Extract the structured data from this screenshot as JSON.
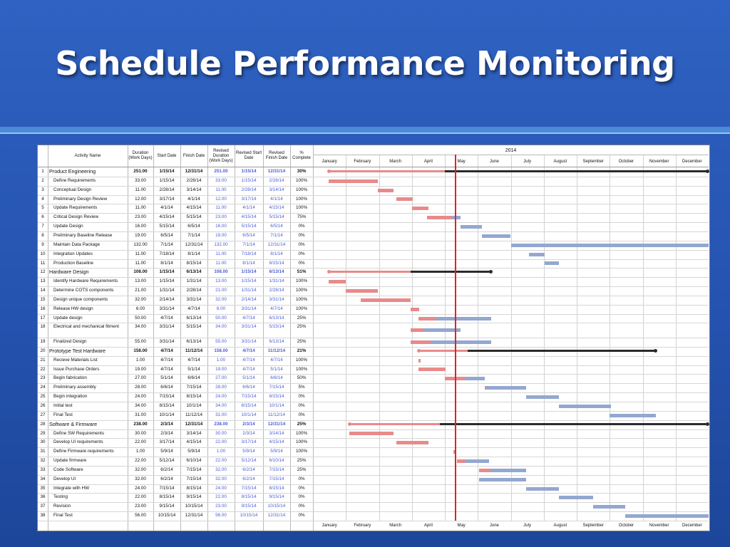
{
  "title": "Schedule Performance Monitoring",
  "headers": {
    "activity": "Activity Name",
    "duration": "Duration (Work Days)",
    "start": "Start Date",
    "finish": "Finish Date",
    "rev_duration": "Revised Duration (Work Days)",
    "rev_start": "Revised Start Date",
    "rev_finish": "Revised Finish Date",
    "pct": "% Complete",
    "year": "2014"
  },
  "months": [
    "January",
    "February",
    "March",
    "April",
    "May",
    "June",
    "July",
    "August",
    "September",
    "October",
    "November",
    "December"
  ],
  "colors": {
    "planned": "#e88a8a",
    "revised": "#93a8d0",
    "summary": "#2b2b2b",
    "today": "#e0202a"
  },
  "status_date_month": 4.3,
  "rows": [
    {
      "n": "1",
      "name": "Product Engineering",
      "dur": "251.00",
      "start": "1/15/14",
      "finish": "12/31/14",
      "rdur": "251.00",
      "rstart": "1/15/14",
      "rfinish": "12/31/14",
      "pct": "30%",
      "summary": true,
      "ps": 0.47,
      "pe": 11.97,
      "prog": 4.0
    },
    {
      "n": "2",
      "name": "Define Requirements",
      "dur": "33.00",
      "start": "1/15/14",
      "finish": "2/28/14",
      "rdur": "33.00",
      "rstart": "1/15/14",
      "rfinish": "2/28/14",
      "pct": "100%",
      "ps": 0.47,
      "pe": 1.97,
      "rs": 0.47,
      "re": 1.97
    },
    {
      "n": "3",
      "name": "Conceptual Design",
      "dur": "11.00",
      "start": "2/28/14",
      "finish": "3/14/14",
      "rdur": "11.00",
      "rstart": "2/28/14",
      "rfinish": "3/14/14",
      "pct": "100%",
      "ps": 1.97,
      "pe": 2.45,
      "rs": 1.97,
      "re": 2.45
    },
    {
      "n": "4",
      "name": "Preliminary Design Review",
      "dur": "12.00",
      "start": "3/17/14",
      "finish": "4/1/14",
      "rdur": "12.00",
      "rstart": "3/17/14",
      "rfinish": "4/1/14",
      "pct": "100%",
      "ps": 2.52,
      "pe": 3.03,
      "rs": 2.52,
      "re": 3.03
    },
    {
      "n": "5",
      "name": "Update Requirements",
      "dur": "11.00",
      "start": "4/1/14",
      "finish": "4/15/14",
      "rdur": "11.00",
      "rstart": "4/1/14",
      "rfinish": "4/15/14",
      "pct": "100%",
      "ps": 3.0,
      "pe": 3.5,
      "rs": 3.0,
      "re": 3.5
    },
    {
      "n": "6",
      "name": "Critical Design Review",
      "dur": "23.00",
      "start": "4/15/14",
      "finish": "5/15/14",
      "rdur": "23.00",
      "rstart": "4/15/14",
      "rfinish": "5/15/14",
      "pct": "75%",
      "ps": 3.47,
      "pe": 4.47,
      "rs": 3.47,
      "re": 4.47,
      "done": 0.75
    },
    {
      "n": "7",
      "name": "Update Design",
      "dur": "16.00",
      "start": "5/15/14",
      "finish": "6/5/14",
      "rdur": "16.00",
      "rstart": "5/15/14",
      "rfinish": "6/5/14",
      "pct": "0%",
      "ps": 4.47,
      "pe": 5.13,
      "rs": 4.47,
      "re": 5.13,
      "done": 0
    },
    {
      "n": "8",
      "name": "Preliminary Baseline Release",
      "dur": "19.00",
      "start": "6/5/14",
      "finish": "7/1/14",
      "rdur": "19.00",
      "rstart": "6/5/14",
      "rfinish": "7/1/14",
      "pct": "0%",
      "ps": 5.13,
      "pe": 6.0,
      "rs": 5.13,
      "re": 6.0,
      "done": 0
    },
    {
      "n": "9",
      "name": "Maintain Data Package",
      "dur": "132.00",
      "start": "7/1/14",
      "finish": "12/31/14",
      "rdur": "132.00",
      "rstart": "7/1/14",
      "rfinish": "12/31/14",
      "pct": "0%",
      "ps": 6.0,
      "pe": 12.0,
      "rs": 6.0,
      "re": 12.0,
      "done": 0
    },
    {
      "n": "10",
      "name": "Integration Updates",
      "dur": "11.00",
      "start": "7/18/14",
      "finish": "8/1/14",
      "rdur": "11.00",
      "rstart": "7/18/14",
      "rfinish": "8/1/14",
      "pct": "0%",
      "ps": 6.55,
      "pe": 7.03,
      "rs": 6.55,
      "re": 7.03,
      "done": 0
    },
    {
      "n": "11",
      "name": "Production Baseline",
      "dur": "11.00",
      "start": "8/1/14",
      "finish": "8/15/14",
      "rdur": "11.00",
      "rstart": "8/1/14",
      "rfinish": "8/15/14",
      "pct": "0%",
      "ps": 7.03,
      "pe": 7.47,
      "rs": 7.03,
      "re": 7.47,
      "done": 0
    },
    {
      "n": "12",
      "name": "Hardware Design",
      "dur": "108.00",
      "start": "1/15/14",
      "finish": "6/13/14",
      "rdur": "108.00",
      "rstart": "1/15/14",
      "rfinish": "6/13/14",
      "pct": "51%",
      "summary": true,
      "ps": 0.47,
      "pe": 5.4,
      "prog": 2.97
    },
    {
      "n": "13",
      "name": "Identify Hardware Requirements",
      "dur": "13.00",
      "start": "1/15/14",
      "finish": "1/31/14",
      "rdur": "13.00",
      "rstart": "1/15/14",
      "rfinish": "1/31/14",
      "pct": "100%",
      "ps": 0.47,
      "pe": 1.0,
      "rs": 0.47,
      "re": 1.0
    },
    {
      "n": "14",
      "name": "Determine COTS components",
      "dur": "21.00",
      "start": "1/31/14",
      "finish": "2/28/14",
      "rdur": "21.00",
      "rstart": "1/31/14",
      "rfinish": "2/28/14",
      "pct": "100%",
      "ps": 1.0,
      "pe": 1.97,
      "rs": 1.0,
      "re": 1.97
    },
    {
      "n": "15",
      "name": "Design unique components",
      "dur": "32.00",
      "start": "2/14/14",
      "finish": "3/31/14",
      "rdur": "32.00",
      "rstart": "2/14/14",
      "rfinish": "3/31/14",
      "pct": "100%",
      "ps": 1.45,
      "pe": 2.97,
      "rs": 1.45,
      "re": 2.97
    },
    {
      "n": "16",
      "name": "Release HW design",
      "dur": "6.00",
      "start": "3/31/14",
      "finish": "4/7/14",
      "rdur": "6.00",
      "rstart": "3/31/14",
      "rfinish": "4/7/14",
      "pct": "100%",
      "ps": 2.97,
      "pe": 3.23,
      "rs": 2.97,
      "re": 3.23
    },
    {
      "n": "17",
      "name": "Update design",
      "dur": "50.00",
      "start": "4/7/14",
      "finish": "6/13/14",
      "rdur": "50.00",
      "rstart": "4/7/14",
      "rfinish": "6/13/14",
      "pct": "25%",
      "ps": 3.2,
      "pe": 5.4,
      "rs": 3.2,
      "re": 5.4,
      "done": 0.25
    },
    {
      "n": "18",
      "name": "Electrical and mechanical fitment",
      "dur": "34.00",
      "start": "3/31/14",
      "finish": "5/15/14",
      "rdur": "34.00",
      "rstart": "3/31/14",
      "rfinish": "5/15/14",
      "pct": "25%",
      "ps": 2.97,
      "pe": 4.47,
      "rs": 2.97,
      "re": 4.47,
      "done": 0.25,
      "tall": true
    },
    {
      "n": "19",
      "name": "Finalized Design",
      "dur": "55.00",
      "start": "3/31/14",
      "finish": "6/13/14",
      "rdur": "55.00",
      "rstart": "3/31/14",
      "rfinish": "6/13/14",
      "pct": "25%",
      "ps": 2.97,
      "pe": 5.4,
      "rs": 2.97,
      "re": 5.4,
      "done": 0.25
    },
    {
      "n": "20",
      "name": "Prototype Test Hardware",
      "dur": "158.00",
      "start": "4/7/14",
      "finish": "11/12/14",
      "rdur": "158.00",
      "rstart": "4/7/14",
      "rfinish": "11/12/14",
      "pct": "21%",
      "summary": true,
      "ps": 3.2,
      "pe": 10.4,
      "prog": 4.7
    },
    {
      "n": "21",
      "name": "Recieve Materials List",
      "dur": "1.00",
      "start": "4/7/14",
      "finish": "4/7/14",
      "rdur": "1.00",
      "rstart": "4/7/14",
      "rfinish": "4/7/14",
      "pct": "100%",
      "ps": 3.2,
      "pe": 3.26,
      "rs": 3.2,
      "re": 3.26
    },
    {
      "n": "22",
      "name": "Issue Purchase Orders",
      "dur": "19.00",
      "start": "4/7/14",
      "finish": "5/1/14",
      "rdur": "19.00",
      "rstart": "4/7/14",
      "rfinish": "5/1/14",
      "pct": "100%",
      "ps": 3.2,
      "pe": 4.03,
      "rs": 3.2,
      "re": 4.03
    },
    {
      "n": "23",
      "name": "Begin fabrication",
      "dur": "27.00",
      "start": "5/1/14",
      "finish": "6/6/14",
      "rdur": "27.00",
      "rstart": "5/1/14",
      "rfinish": "6/6/14",
      "pct": "50%",
      "ps": 4.0,
      "pe": 5.2,
      "rs": 4.0,
      "re": 5.2,
      "done": 0.5
    },
    {
      "n": "24",
      "name": "Preliminary assembly",
      "dur": "28.00",
      "start": "6/6/14",
      "finish": "7/15/14",
      "rdur": "28.00",
      "rstart": "6/6/14",
      "rfinish": "7/15/14",
      "pct": "5%",
      "ps": 5.2,
      "pe": 6.47,
      "rs": 5.2,
      "re": 6.47,
      "done": 0.05
    },
    {
      "n": "25",
      "name": "Begin integration",
      "dur": "24.00",
      "start": "7/15/14",
      "finish": "8/15/14",
      "rdur": "24.00",
      "rstart": "7/15/14",
      "rfinish": "8/15/14",
      "pct": "0%",
      "ps": 6.47,
      "pe": 7.47,
      "rs": 6.47,
      "re": 7.47,
      "done": 0
    },
    {
      "n": "26",
      "name": "Initial test",
      "dur": "34.00",
      "start": "8/15/14",
      "finish": "10/1/14",
      "rdur": "34.00",
      "rstart": "8/15/14",
      "rfinish": "10/1/14",
      "pct": "0%",
      "ps": 7.47,
      "pe": 9.03,
      "rs": 7.47,
      "re": 9.03,
      "done": 0
    },
    {
      "n": "27",
      "name": "Final Test",
      "dur": "31.00",
      "start": "10/1/14",
      "finish": "11/12/14",
      "rdur": "31.00",
      "rstart": "10/1/14",
      "rfinish": "11/12/14",
      "pct": "0%",
      "ps": 9.0,
      "pe": 10.4,
      "rs": 9.0,
      "re": 10.4,
      "done": 0
    },
    {
      "n": "28",
      "name": "Software & Firmware",
      "dur": "238.00",
      "start": "2/3/14",
      "finish": "12/31/14",
      "rdur": "238.00",
      "rstart": "2/3/14",
      "rfinish": "12/31/14",
      "pct": "25%",
      "summary": true,
      "ps": 1.1,
      "pe": 11.97,
      "prog": 3.85
    },
    {
      "n": "29",
      "name": "Define SW Requirements",
      "dur": "30.00",
      "start": "2/3/14",
      "finish": "3/14/14",
      "rdur": "30.00",
      "rstart": "2/3/14",
      "rfinish": "3/14/14",
      "pct": "100%",
      "ps": 1.1,
      "pe": 2.45,
      "rs": 1.1,
      "re": 2.45
    },
    {
      "n": "30",
      "name": "Develop UI requirements",
      "dur": "22.00",
      "start": "3/17/14",
      "finish": "4/15/14",
      "rdur": "22.00",
      "rstart": "3/17/14",
      "rfinish": "4/15/14",
      "pct": "100%",
      "ps": 2.52,
      "pe": 3.5,
      "rs": 2.52,
      "re": 3.5
    },
    {
      "n": "31",
      "name": "Define Firmware requirements",
      "dur": "1.00",
      "start": "5/9/14",
      "finish": "5/9/14",
      "rdur": "1.00",
      "rstart": "5/9/14",
      "rfinish": "5/9/14",
      "pct": "100%",
      "ps": 4.26,
      "pe": 4.32,
      "rs": 4.26,
      "re": 4.32
    },
    {
      "n": "32",
      "name": "Update firmware",
      "dur": "22.00",
      "start": "5/12/14",
      "finish": "6/10/14",
      "rdur": "22.00",
      "rstart": "5/12/14",
      "rfinish": "6/10/14",
      "pct": "25%",
      "ps": 4.37,
      "pe": 5.33,
      "rs": 4.37,
      "re": 5.33,
      "done": 0.25
    },
    {
      "n": "33",
      "name": "Code Software",
      "dur": "32.00",
      "start": "6/2/14",
      "finish": "7/15/14",
      "rdur": "32.00",
      "rstart": "6/2/14",
      "rfinish": "7/15/14",
      "pct": "25%",
      "ps": 5.03,
      "pe": 6.47,
      "rs": 5.03,
      "re": 6.47,
      "done": 0.25
    },
    {
      "n": "34",
      "name": "Develop UI",
      "dur": "32.00",
      "start": "6/2/14",
      "finish": "7/15/14",
      "rdur": "32.00",
      "rstart": "6/2/14",
      "rfinish": "7/15/14",
      "pct": "0%",
      "ps": 5.03,
      "pe": 6.47,
      "rs": 5.03,
      "re": 6.47,
      "done": 0
    },
    {
      "n": "35",
      "name": "Integrate with HW",
      "dur": "24.00",
      "start": "7/15/14",
      "finish": "8/15/14",
      "rdur": "24.00",
      "rstart": "7/15/14",
      "rfinish": "8/15/14",
      "pct": "0%",
      "ps": 6.47,
      "pe": 7.47,
      "rs": 6.47,
      "re": 7.47,
      "done": 0
    },
    {
      "n": "36",
      "name": "Testing",
      "dur": "22.00",
      "start": "8/15/14",
      "finish": "9/15/14",
      "rdur": "22.00",
      "rstart": "8/15/14",
      "rfinish": "9/15/14",
      "pct": "0%",
      "ps": 7.47,
      "pe": 8.5,
      "rs": 7.47,
      "re": 8.5,
      "done": 0
    },
    {
      "n": "37",
      "name": "Revision",
      "dur": "23.00",
      "start": "9/15/14",
      "finish": "10/15/14",
      "rdur": "23.00",
      "rstart": "9/15/14",
      "rfinish": "10/15/14",
      "pct": "0%",
      "ps": 8.5,
      "pe": 9.47,
      "rs": 8.5,
      "re": 9.47,
      "done": 0
    },
    {
      "n": "38",
      "name": "Final Test",
      "dur": "56.00",
      "start": "10/15/14",
      "finish": "12/31/14",
      "rdur": "56.00",
      "rstart": "10/15/14",
      "rfinish": "12/31/14",
      "pct": "0%",
      "ps": 9.47,
      "pe": 12.0,
      "rs": 9.47,
      "re": 12.0,
      "done": 0
    }
  ]
}
